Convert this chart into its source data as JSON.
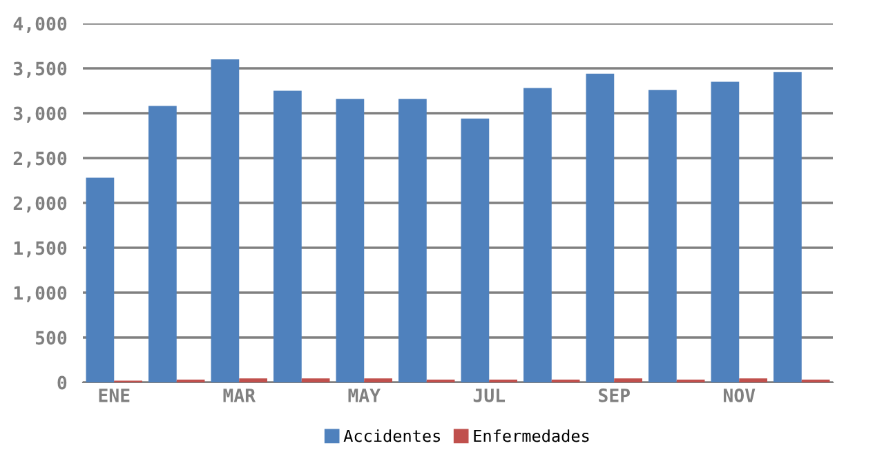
{
  "chart_data": {
    "type": "bar",
    "categories": [
      "ENE",
      null,
      "MAR",
      null,
      "MAY",
      null,
      "JUL",
      null,
      "SEP",
      null,
      "NOV",
      null
    ],
    "series": [
      {
        "name": "Accidentes",
        "color": "#4f81bd",
        "values": [
          2280,
          3080,
          3600,
          3250,
          3160,
          3160,
          2940,
          3280,
          3440,
          3260,
          3350,
          3460
        ]
      },
      {
        "name": "Enfermedades",
        "color": "#c0504d",
        "values": [
          20,
          30,
          45,
          45,
          45,
          30,
          30,
          30,
          45,
          30,
          45,
          30
        ]
      }
    ],
    "ylim": [
      0,
      4000
    ],
    "yticks": [
      {
        "value": 0,
        "label": "0"
      },
      {
        "value": 500,
        "label": "500"
      },
      {
        "value": 1000,
        "label": "1,000"
      },
      {
        "value": 1500,
        "label": "1,500"
      },
      {
        "value": 2000,
        "label": "2,000"
      },
      {
        "value": 2500,
        "label": "2,500"
      },
      {
        "value": 3000,
        "label": "3,000"
      },
      {
        "value": 3500,
        "label": "3,500"
      },
      {
        "value": 4000,
        "label": "4,000"
      }
    ],
    "grid": "y",
    "legend": "bottom"
  }
}
